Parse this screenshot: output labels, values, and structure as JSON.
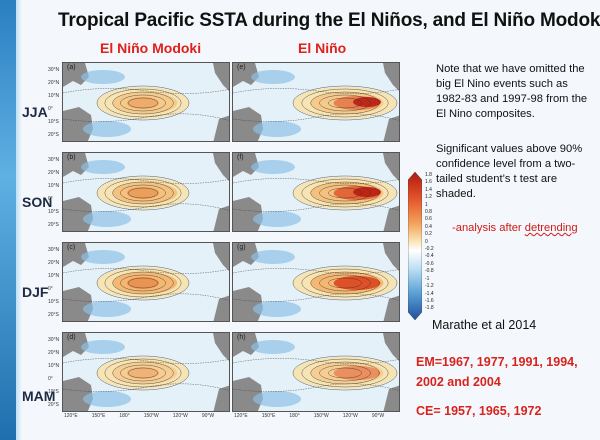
{
  "title": "Tropical Pacific SSTA during the El Niños, and El Niño Modokis",
  "columns": {
    "left": "El Niño Modoki",
    "right": "El Niño"
  },
  "seasons": [
    "JJA",
    "SON",
    "DJF",
    "MAM"
  ],
  "panels": [
    {
      "label": "(a)"
    },
    {
      "label": "(e)"
    },
    {
      "label": "(b)"
    },
    {
      "label": "(f)"
    },
    {
      "label": "(c)"
    },
    {
      "label": "(g)"
    },
    {
      "label": "(d)"
    },
    {
      "label": "(h)"
    }
  ],
  "lat_ticks": [
    "30°N",
    "20°N",
    "10°N",
    "0°",
    "10°S",
    "20°S"
  ],
  "lon_ticks": [
    "120°E",
    "150°E",
    "180°",
    "150°W",
    "120°W",
    "90°W"
  ],
  "note": "Note that we have omitted the big El Nino events such as 1982-83 and 1997-98 from the El Nino composites.",
  "significance": "Significant values above 90% confidence level from a two-tailed student’s t test are shaded.",
  "analysis": {
    "prefix": "-analysis after ",
    "underlined": "detrending"
  },
  "colorbar_labels": [
    "1.8",
    "1.6",
    "1.4",
    "1.2",
    "1",
    "0.8",
    "0.6",
    "0.4",
    "0.2",
    "0",
    "-0.2",
    "-0.4",
    "-0.6",
    "-0.8",
    "-1",
    "-1.2",
    "-1.4",
    "-1.6",
    "-1.8"
  ],
  "citation": "Marathe et al 2014",
  "em_years": "EM=1967, 1977, 1991, 1994, 2002  and 2004",
  "ce_years": "CE= 1957, 1965, 1972",
  "colors": {
    "warm": "#d9411e",
    "cool": "#5aa0d6",
    "accent": "#e0201a"
  }
}
